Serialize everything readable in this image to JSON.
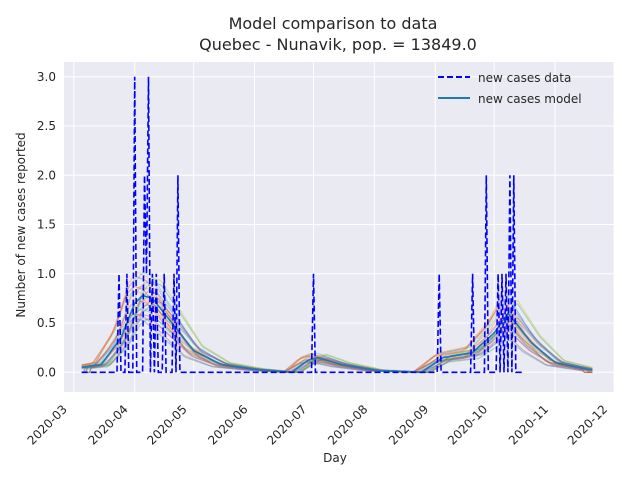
{
  "chart_data": {
    "type": "line",
    "title": "Model comparison to data",
    "subtitle": "Quebec - Nunavik, pop. = 13849.0",
    "xlabel": "Day",
    "ylabel": "Number of new cases reported",
    "x_range": [
      "2020-02-25",
      "2020-12-01"
    ],
    "ylim": [
      -0.2,
      3.15
    ],
    "x_ticks": [
      "2020-03",
      "2020-04",
      "2020-05",
      "2020-06",
      "2020-07",
      "2020-08",
      "2020-09",
      "2020-10",
      "2020-11",
      "2020-12"
    ],
    "y_ticks": [
      "0.0",
      "0.5",
      "1.0",
      "1.5",
      "2.0",
      "2.5",
      "3.0"
    ],
    "grid": true,
    "legend_position": "top-right",
    "data_series": {
      "name": "new cases data",
      "style": "dashed",
      "color": "#0000ff",
      "start": "2020-03-05",
      "end": "2020-10-15",
      "nonzero": [
        {
          "x": "2020-03-24",
          "y": 1
        },
        {
          "x": "2020-03-28",
          "y": 1
        },
        {
          "x": "2020-04-01",
          "y": 3
        },
        {
          "x": "2020-04-06",
          "y": 2
        },
        {
          "x": "2020-04-07",
          "y": 1
        },
        {
          "x": "2020-04-08",
          "y": 3
        },
        {
          "x": "2020-04-10",
          "y": 1
        },
        {
          "x": "2020-04-12",
          "y": 1
        },
        {
          "x": "2020-04-16",
          "y": 1
        },
        {
          "x": "2020-04-21",
          "y": 1
        },
        {
          "x": "2020-04-23",
          "y": 2
        },
        {
          "x": "2020-07-01",
          "y": 1
        },
        {
          "x": "2020-09-03",
          "y": 1
        },
        {
          "x": "2020-09-20",
          "y": 1
        },
        {
          "x": "2020-09-27",
          "y": 2
        },
        {
          "x": "2020-10-03",
          "y": 1
        },
        {
          "x": "2020-10-05",
          "y": 1
        },
        {
          "x": "2020-10-07",
          "y": 1
        },
        {
          "x": "2020-10-09",
          "y": 2
        },
        {
          "x": "2020-10-11",
          "y": 2
        }
      ]
    },
    "model_series": {
      "name": "new cases model",
      "color": "#1f77b4",
      "points": [
        {
          "x": "2020-03-05",
          "y": 0.05
        },
        {
          "x": "2020-03-15",
          "y": 0.08
        },
        {
          "x": "2020-03-25",
          "y": 0.35
        },
        {
          "x": "2020-04-01",
          "y": 0.7
        },
        {
          "x": "2020-04-05",
          "y": 0.78
        },
        {
          "x": "2020-04-10",
          "y": 0.75
        },
        {
          "x": "2020-04-20",
          "y": 0.5
        },
        {
          "x": "2020-05-01",
          "y": 0.22
        },
        {
          "x": "2020-05-15",
          "y": 0.08
        },
        {
          "x": "2020-06-01",
          "y": 0.03
        },
        {
          "x": "2020-06-20",
          "y": 0.0
        },
        {
          "x": "2020-06-28",
          "y": 0.12
        },
        {
          "x": "2020-07-03",
          "y": 0.15
        },
        {
          "x": "2020-07-15",
          "y": 0.08
        },
        {
          "x": "2020-08-01",
          "y": 0.02
        },
        {
          "x": "2020-08-25",
          "y": 0.0
        },
        {
          "x": "2020-09-05",
          "y": 0.15
        },
        {
          "x": "2020-09-20",
          "y": 0.2
        },
        {
          "x": "2020-10-01",
          "y": 0.4
        },
        {
          "x": "2020-10-08",
          "y": 0.6
        },
        {
          "x": "2020-10-20",
          "y": 0.3
        },
        {
          "x": "2020-11-01",
          "y": 0.1
        },
        {
          "x": "2020-11-20",
          "y": 0.02
        }
      ]
    },
    "ensemble_colors": [
      "#1f77b4",
      "#ff7f0e",
      "#2ca02c",
      "#d62728",
      "#9467bd",
      "#8c564b",
      "#e377c2",
      "#bcbd22",
      "#17becf"
    ]
  }
}
